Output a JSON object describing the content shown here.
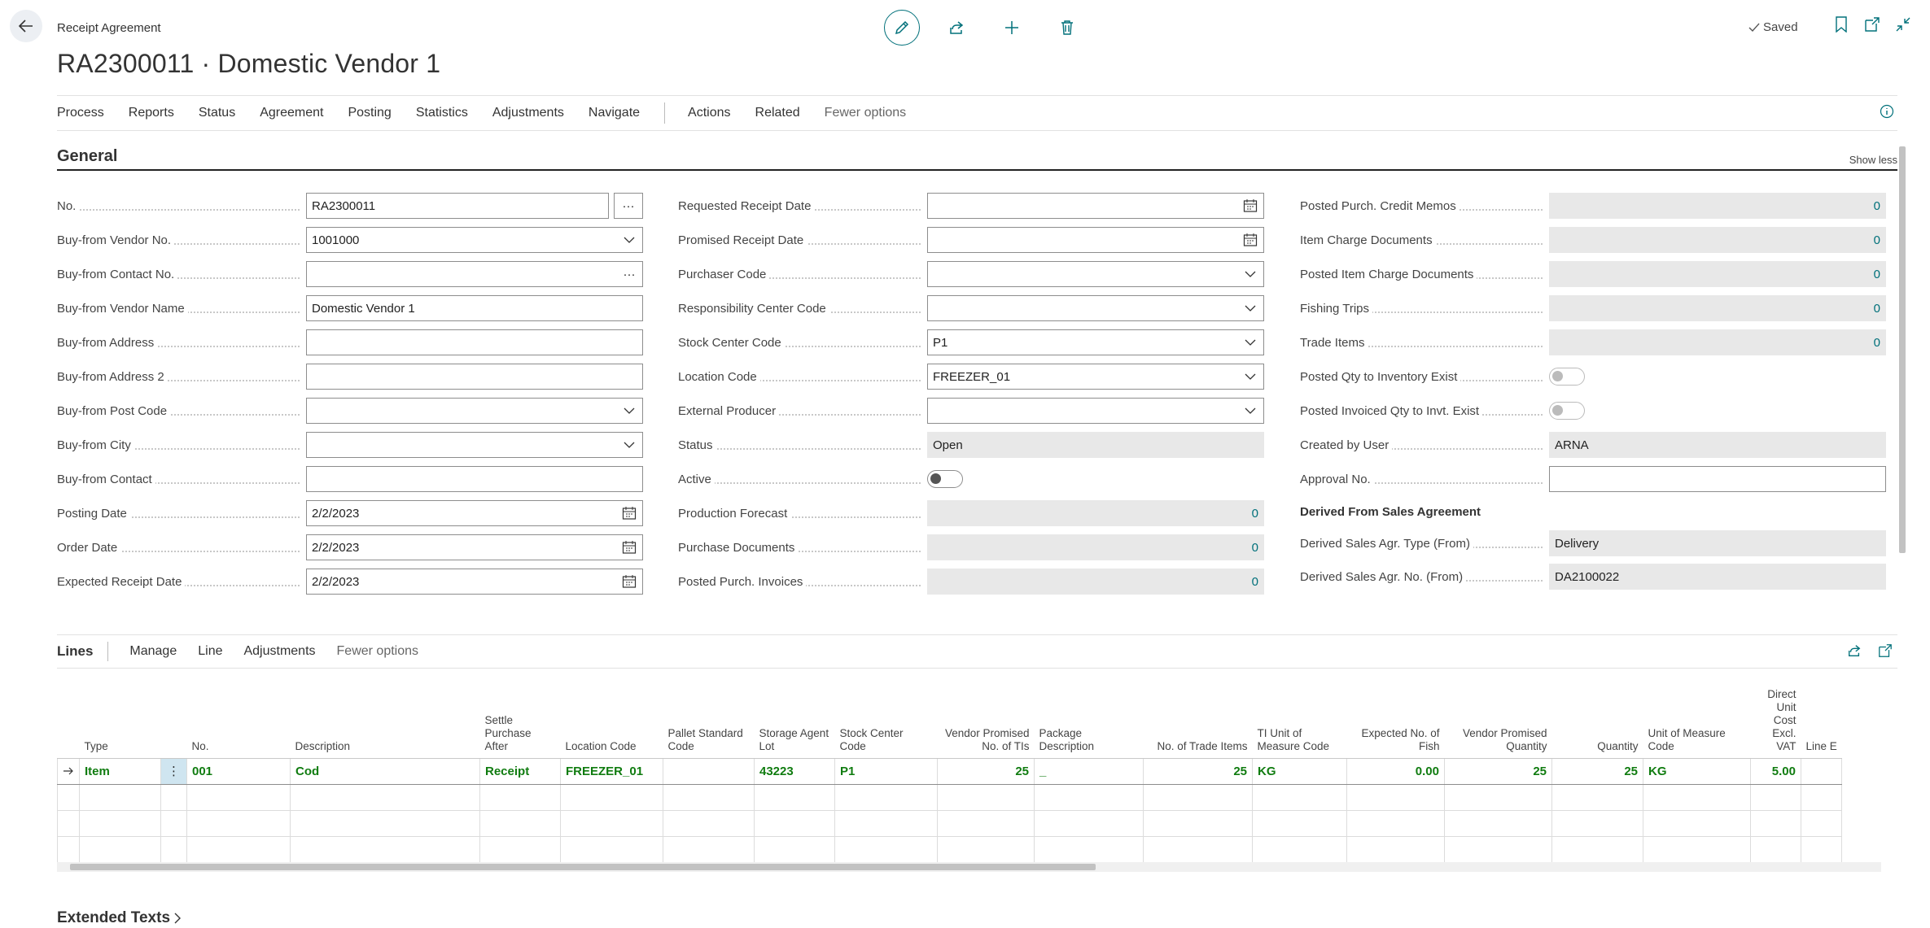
{
  "header": {
    "breadcrumb": "Receipt Agreement",
    "title": "RA2300011 · Domestic Vendor 1",
    "saved_label": "Saved"
  },
  "menu": {
    "items": [
      "Process",
      "Reports",
      "Status",
      "Agreement",
      "Posting",
      "Statistics",
      "Adjustments",
      "Navigate"
    ],
    "items2": [
      "Actions",
      "Related"
    ],
    "fewer": "Fewer options"
  },
  "general": {
    "title": "General",
    "show_less": "Show less",
    "col1": [
      {
        "label": "No.",
        "value": "RA2300011"
      },
      {
        "label": "Buy-from Vendor No.",
        "value": "1001000"
      },
      {
        "label": "Buy-from Contact No.",
        "value": ""
      },
      {
        "label": "Buy-from Vendor Name",
        "value": "Domestic Vendor 1"
      },
      {
        "label": "Buy-from Address",
        "value": ""
      },
      {
        "label": "Buy-from Address 2",
        "value": ""
      },
      {
        "label": "Buy-from Post Code",
        "value": ""
      },
      {
        "label": "Buy-from City",
        "value": ""
      },
      {
        "label": "Buy-from Contact",
        "value": ""
      },
      {
        "label": "Posting Date",
        "value": "2/2/2023"
      },
      {
        "label": "Order Date",
        "value": "2/2/2023"
      },
      {
        "label": "Expected Receipt Date",
        "value": "2/2/2023"
      }
    ],
    "col2": [
      {
        "label": "Requested Receipt Date",
        "value": ""
      },
      {
        "label": "Promised Receipt Date",
        "value": ""
      },
      {
        "label": "Purchaser Code",
        "value": ""
      },
      {
        "label": "Responsibility Center Code",
        "value": ""
      },
      {
        "label": "Stock Center Code",
        "value": "P1"
      },
      {
        "label": "Location Code",
        "value": "FREEZER_01"
      },
      {
        "label": "External Producer",
        "value": ""
      },
      {
        "label": "Status",
        "value": "Open"
      },
      {
        "label": "Active",
        "value": ""
      },
      {
        "label": "Production Forecast",
        "value": "0"
      },
      {
        "label": "Purchase Documents",
        "value": "0"
      },
      {
        "label": "Posted Purch. Invoices",
        "value": "0"
      }
    ],
    "col3": [
      {
        "label": "Posted Purch. Credit Memos",
        "value": "0"
      },
      {
        "label": "Item Charge Documents",
        "value": "0"
      },
      {
        "label": "Posted Item Charge Documents",
        "value": "0"
      },
      {
        "label": "Fishing Trips",
        "value": "0"
      },
      {
        "label": "Trade Items",
        "value": "0"
      },
      {
        "label": "Posted Qty to Inventory Exist",
        "value": ""
      },
      {
        "label": "Posted Invoiced Qty to Invt. Exist",
        "value": ""
      },
      {
        "label": "Created by User",
        "value": "ARNA"
      },
      {
        "label": "Approval No.",
        "value": ""
      }
    ],
    "derived_title": "Derived From Sales Agreement",
    "derived": [
      {
        "label": "Derived Sales Agr. Type (From)",
        "value": "Delivery"
      },
      {
        "label": "Derived Sales Agr. No. (From)",
        "value": "DA2100022"
      }
    ]
  },
  "lines": {
    "title": "Lines",
    "actions": [
      "Manage",
      "Line",
      "Adjustments"
    ],
    "fewer": "Fewer options",
    "columns": [
      "Type",
      "No.",
      "Description",
      "Settle Purchase After",
      "Location Code",
      "Pallet Standard Code",
      "Storage Agent Lot",
      "Stock Center Code",
      "Vendor Promised No. of TIs",
      "Package Description",
      "No. of Trade Items",
      "TI Unit of Measure Code",
      "Expected No. of Fish",
      "Vendor Promised Quantity",
      "Quantity",
      "Unit of Measure Code",
      "Direct Unit Cost Excl. VAT",
      "Line E"
    ],
    "row": [
      "Item",
      "001",
      "Cod",
      "Receipt",
      "FREEZER_01",
      "",
      "43223",
      "P1",
      "25",
      "_",
      "25",
      "KG",
      "0.00",
      "25",
      "25",
      "KG",
      "5.00",
      ""
    ]
  },
  "extended_texts": "Extended Texts"
}
